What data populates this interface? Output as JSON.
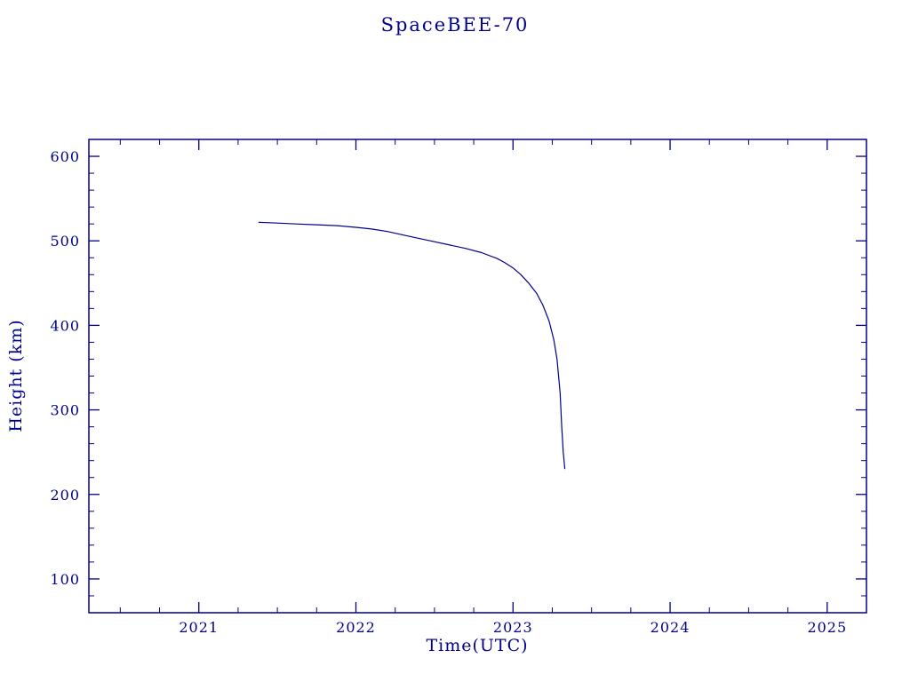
{
  "colors": {
    "accent": "#00008B",
    "background": "#ffffff"
  },
  "chart_data": {
    "type": "line",
    "title": "SpaceBEE-70",
    "xlabel": "Time(UTC)",
    "ylabel": "Height (km)",
    "xlim": [
      2020.3,
      2025.25
    ],
    "ylim": [
      60,
      620
    ],
    "xticks": [
      2021,
      2022,
      2023,
      2024,
      2025
    ],
    "yticks": [
      100,
      200,
      300,
      400,
      500,
      600
    ],
    "x_minor_step": 0.25,
    "y_minor_step": 20,
    "grid": false,
    "legend": "none",
    "line_color": "#00008B",
    "series": [
      {
        "name": "orbital-height",
        "x": [
          2021.38,
          2021.5,
          2021.62,
          2021.75,
          2021.88,
          2022.0,
          2022.1,
          2022.2,
          2022.3,
          2022.4,
          2022.5,
          2022.6,
          2022.7,
          2022.8,
          2022.9,
          2022.95,
          2023.0,
          2023.05,
          2023.1,
          2023.15,
          2023.19,
          2023.23,
          2023.26,
          2023.28,
          2023.3,
          2023.31,
          2023.32,
          2023.33
        ],
        "y": [
          522,
          521,
          520,
          519,
          518,
          516,
          514,
          511,
          507,
          503,
          499,
          495,
          491,
          486,
          479,
          474,
          468,
          460,
          450,
          438,
          424,
          405,
          383,
          360,
          320,
          280,
          250,
          230
        ]
      }
    ]
  }
}
